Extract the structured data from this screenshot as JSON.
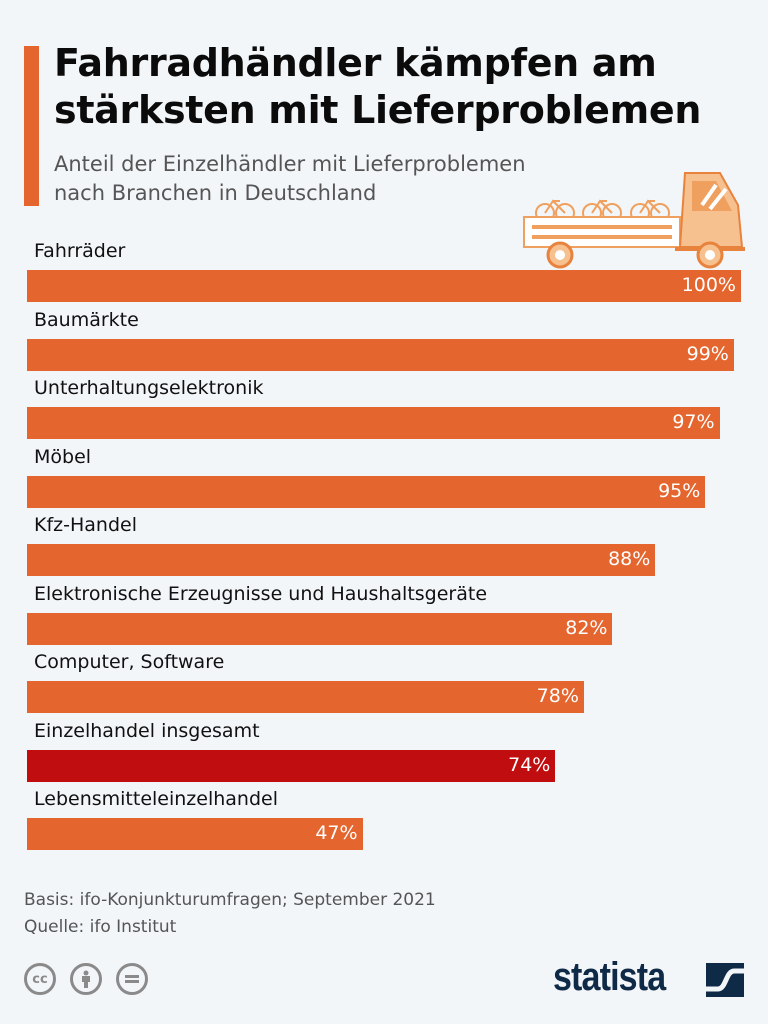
{
  "header": {
    "title_line1": "Fahrradhändler kämpfen am",
    "title_line2": "stärksten mit Lieferproblemen",
    "subtitle_line1": "Anteil der Einzelhändler mit Lieferproblemen",
    "subtitle_line2": "nach Branchen in Deutschland"
  },
  "chart_data": {
    "type": "bar",
    "orientation": "horizontal",
    "unit": "%",
    "xlim": [
      0,
      100
    ],
    "grid": false,
    "categories": [
      "Fahrräder",
      "Baumärkte",
      "Unterhaltungselektronik",
      "Möbel",
      "Kfz-Handel",
      "Elektronische Erzeugnisse und Haushaltsgeräte",
      "Computer, Software",
      "Einzelhandel insgesamt",
      "Lebensmitteleinzelhandel"
    ],
    "values": [
      100,
      99,
      97,
      95,
      88,
      82,
      78,
      74,
      47
    ],
    "labels": [
      "100%",
      "99%",
      "97%",
      "95%",
      "88%",
      "82%",
      "78%",
      "74%",
      "47%"
    ],
    "colors": {
      "default": "#e4652e",
      "highlight": "#c00d0f"
    },
    "highlight_index": 7
  },
  "footer": {
    "basis": "Basis: ifo-Konjunkturumfragen; September 2021",
    "source": "Quelle: ifo Institut",
    "license_icons": [
      "cc-icon",
      "by-icon",
      "nd-icon"
    ],
    "logo": "statista"
  }
}
